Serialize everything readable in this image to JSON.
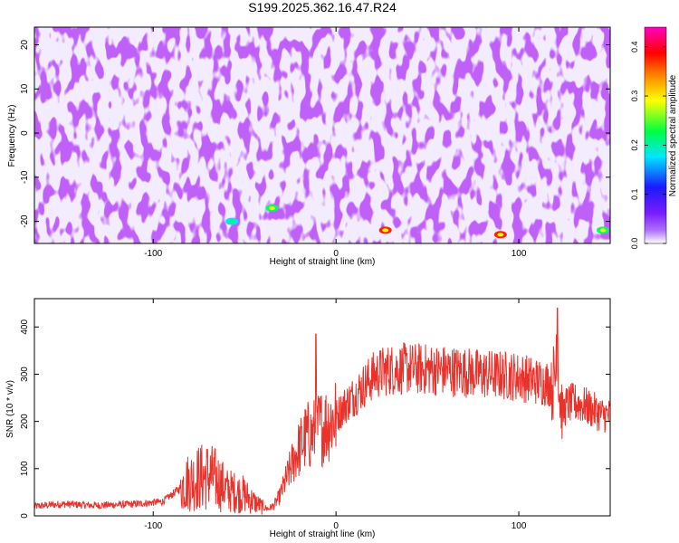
{
  "title": "S199.2025.362.16.47.R24",
  "chart_data": [
    {
      "type": "heatmap",
      "xlabel": "Height of straight line (km)",
      "ylabel": "Frequency (Hz)",
      "xlim": [
        -165,
        150
      ],
      "ylim": [
        -25,
        24
      ],
      "xticks": [
        -100,
        0,
        100
      ],
      "yticks": [
        -20,
        -10,
        0,
        10,
        20
      ],
      "colorbar": {
        "label": "Normalized spectral amplitude",
        "range": [
          0,
          0.44
        ],
        "ticks": [
          "0.0",
          "0.1",
          "0.2",
          "0.3",
          "0.4"
        ],
        "colors": [
          "#ffffff",
          "#9b30ff",
          "#1a1aff",
          "#00e5ff",
          "#00ff40",
          "#ffff00",
          "#ff8000",
          "#ff0000",
          "#ff00c0"
        ]
      },
      "hotspots": [
        {
          "x": -57,
          "y": -20,
          "amplitude": 0.25
        },
        {
          "x": -35,
          "y": -17,
          "amplitude": 0.33
        },
        {
          "x": 27,
          "y": -22,
          "amplitude": 0.38
        },
        {
          "x": 90,
          "y": -23,
          "amplitude": 0.4
        },
        {
          "x": 146,
          "y": -22,
          "amplitude": 0.32
        }
      ]
    },
    {
      "type": "line",
      "xlabel": "Height of straight line (km)",
      "ylabel": "SNR (10 * v/v)",
      "xlim": [
        -165,
        150
      ],
      "ylim": [
        0,
        460
      ],
      "xticks": [
        -100,
        0,
        100
      ],
      "yticks": [
        0,
        100,
        200,
        300,
        400
      ],
      "color": "#e8322b",
      "x": [
        -165,
        -150,
        -130,
        -110,
        -95,
        -88,
        -82,
        -76,
        -70,
        -65,
        -60,
        -55,
        -50,
        -45,
        -40,
        -37,
        -34,
        -31,
        -28,
        -25,
        -22,
        -19,
        -16,
        -13,
        -10,
        -7,
        -4,
        0,
        5,
        10,
        15,
        20,
        25,
        30,
        40,
        50,
        60,
        70,
        80,
        90,
        100,
        105,
        110,
        115,
        118,
        120,
        121,
        122,
        124,
        126,
        130,
        135,
        140,
        145,
        150
      ],
      "values": [
        20,
        25,
        22,
        25,
        30,
        50,
        70,
        80,
        85,
        75,
        55,
        50,
        45,
        30,
        18,
        15,
        22,
        40,
        70,
        100,
        130,
        150,
        170,
        170,
        185,
        190,
        200,
        210,
        235,
        255,
        275,
        295,
        305,
        310,
        312,
        310,
        308,
        305,
        300,
        298,
        295,
        290,
        285,
        282,
        280,
        290,
        440,
        270,
        215,
        235,
        240,
        235,
        225,
        215,
        212
      ]
    }
  ]
}
